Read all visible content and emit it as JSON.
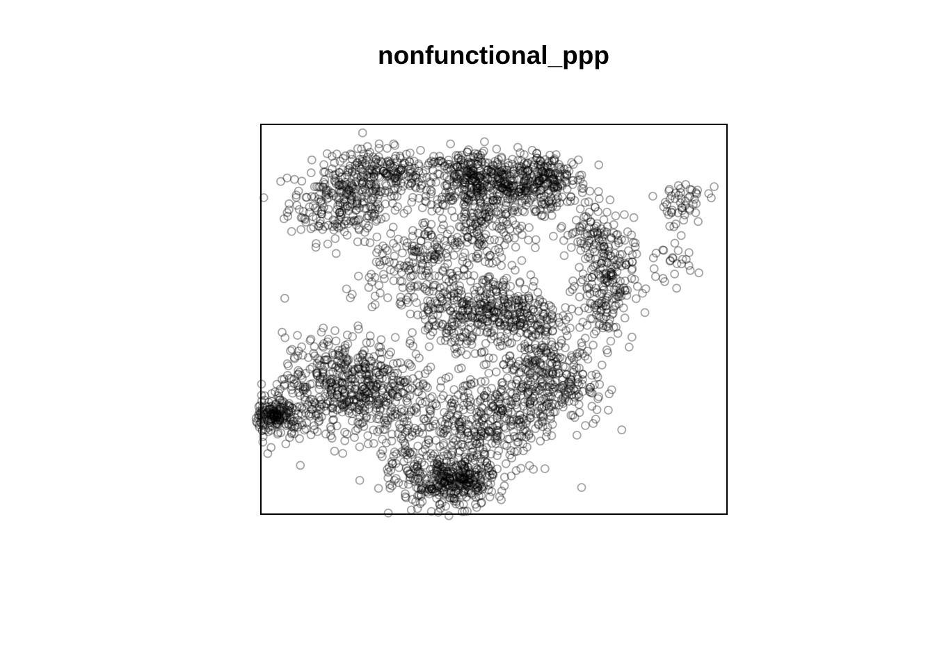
{
  "chart_data": {
    "type": "scatter",
    "title": "nonfunctional_ppp",
    "xlabel": "",
    "ylabel": "",
    "axes": "none",
    "grid": false,
    "legend": "none",
    "point_style": "open-circle",
    "point_color": "#000000",
    "point_alpha": 0.35,
    "xlim": [
      0,
      100
    ],
    "ylim": [
      0,
      100
    ],
    "clusters": [
      {
        "x": 18,
        "y": 80,
        "sx": 6,
        "sy": 5,
        "n": 260
      },
      {
        "x": 24,
        "y": 88,
        "sx": 5,
        "sy": 3,
        "n": 140
      },
      {
        "x": 33,
        "y": 86,
        "sx": 4,
        "sy": 3,
        "n": 60
      },
      {
        "x": 45,
        "y": 86,
        "sx": 5,
        "sy": 4,
        "n": 280
      },
      {
        "x": 55,
        "y": 84,
        "sx": 5,
        "sy": 4,
        "n": 220
      },
      {
        "x": 62,
        "y": 86,
        "sx": 4,
        "sy": 3,
        "n": 140
      },
      {
        "x": 48,
        "y": 72,
        "sx": 4,
        "sy": 5,
        "n": 140
      },
      {
        "x": 37,
        "y": 68,
        "sx": 4,
        "sy": 5,
        "n": 90
      },
      {
        "x": 74,
        "y": 60,
        "sx": 3,
        "sy": 8,
        "n": 230
      },
      {
        "x": 70,
        "y": 72,
        "sx": 3,
        "sy": 4,
        "n": 60
      },
      {
        "x": 52,
        "y": 52,
        "sx": 6,
        "sy": 5,
        "n": 320
      },
      {
        "x": 40,
        "y": 52,
        "sx": 4,
        "sy": 5,
        "n": 130
      },
      {
        "x": 17,
        "y": 34,
        "sx": 6,
        "sy": 6,
        "n": 380
      },
      {
        "x": 28,
        "y": 30,
        "sx": 5,
        "sy": 6,
        "n": 180
      },
      {
        "x": 6,
        "y": 25,
        "sx": 4,
        "sy": 4,
        "n": 120
      },
      {
        "x": 3,
        "y": 25,
        "sx": 2,
        "sy": 1.5,
        "n": 110
      },
      {
        "x": 45,
        "y": 22,
        "sx": 5,
        "sy": 6,
        "n": 230
      },
      {
        "x": 56,
        "y": 28,
        "sx": 5,
        "sy": 7,
        "n": 220
      },
      {
        "x": 42,
        "y": 8,
        "sx": 4,
        "sy": 3,
        "n": 280
      },
      {
        "x": 34,
        "y": 12,
        "sx": 5,
        "sy": 5,
        "n": 130
      },
      {
        "x": 62,
        "y": 40,
        "sx": 4,
        "sy": 5,
        "n": 140
      },
      {
        "x": 67,
        "y": 32,
        "sx": 4,
        "sy": 4,
        "n": 80
      },
      {
        "x": 30,
        "y": 62,
        "sx": 5,
        "sy": 5,
        "n": 90
      },
      {
        "x": 90,
        "y": 80,
        "sx": 3,
        "sy": 3,
        "n": 50
      },
      {
        "x": 88,
        "y": 65,
        "sx": 3,
        "sy": 3,
        "n": 25
      }
    ]
  }
}
